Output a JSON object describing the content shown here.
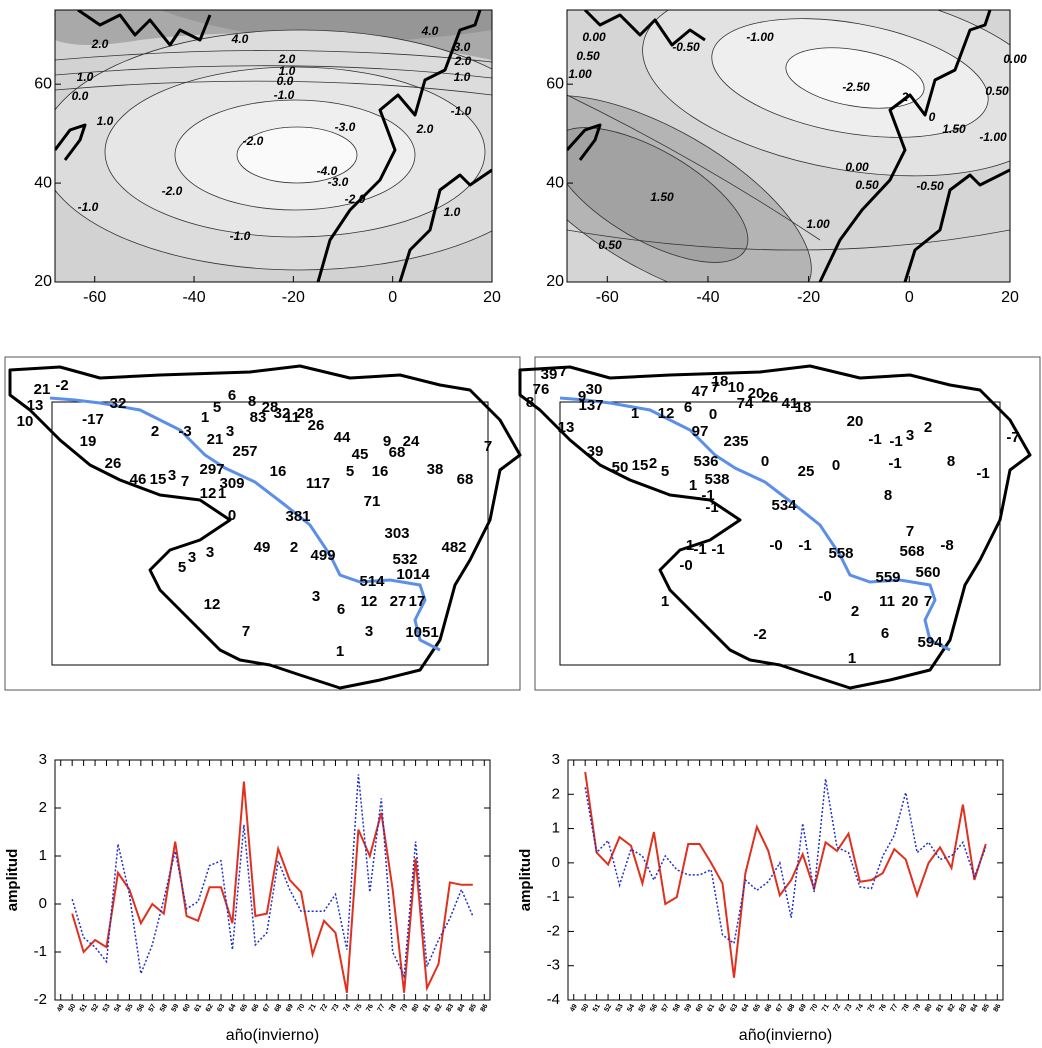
{
  "chart_data": [
    {
      "type": "contour",
      "xlim": [
        -68,
        20
      ],
      "xticks": [
        -60,
        -40,
        -20,
        0,
        20
      ],
      "ylim": [
        20,
        75
      ],
      "yticks": [
        20,
        40,
        60
      ],
      "contour_labels": [
        "2.0",
        "4.0",
        "4.0",
        "3.0",
        "2.0",
        "1.0",
        "-1.0",
        "2.0",
        "1.0",
        "0.0",
        "-1.0",
        "1.0",
        "0.0",
        "1.0",
        "-2.0",
        "-3.0",
        "2.0",
        "-4.0",
        "-3.0",
        "-2.0",
        "-2.0",
        "-1.0",
        "-1.0",
        "1.0"
      ]
    },
    {
      "type": "contour",
      "xlim": [
        -68,
        20
      ],
      "xticks": [
        -60,
        -40,
        -20,
        0,
        20
      ],
      "ylim": [
        20,
        75
      ],
      "yticks": [
        20,
        40,
        60
      ],
      "contour_labels": [
        "0.00",
        "0.50",
        "1.00",
        "-0.50",
        "-1.00",
        "-2.50",
        "2",
        "0",
        "1.50",
        "-1.00",
        "0.00",
        "0.50",
        "0.00",
        "0.50",
        "-0.50",
        "1.50",
        "1.00",
        "0.50"
      ]
    },
    {
      "type": "map",
      "labels": [
        "21",
        "-2",
        "13",
        "10",
        "-17",
        "32",
        "2",
        "-3",
        "1",
        "5",
        "6",
        "8",
        "28",
        "32",
        "28",
        "26",
        "83",
        "11",
        "3",
        "21",
        "257",
        "19",
        "26",
        "46",
        "15",
        "3",
        "7",
        "297",
        "309",
        "12",
        "1",
        "0",
        "16",
        "117",
        "44",
        "45",
        "5",
        "16",
        "9",
        "24",
        "68",
        "38",
        "68",
        "71",
        "7",
        "381",
        "303",
        "482",
        "49",
        "2",
        "499",
        "532",
        "1014",
        "514",
        "3",
        "3",
        "5",
        "12",
        "27",
        "17",
        "3",
        "6",
        "12",
        "3",
        "1051",
        "7",
        "1"
      ]
    },
    {
      "type": "map",
      "labels": [
        "39",
        "7",
        "76",
        "8",
        "9",
        "30",
        "137",
        "1",
        "13",
        "12",
        "6",
        "47",
        "7",
        "18",
        "10",
        "20",
        "26",
        "41",
        "18",
        "74",
        "97",
        "0",
        "235",
        "39",
        "50",
        "15",
        "2",
        "5",
        "536",
        "538",
        "1",
        "-1",
        "-1",
        "0",
        "25",
        "0",
        "20",
        "-1",
        "-1",
        "3",
        "2",
        "8",
        "-1",
        "-7",
        "-1",
        "8",
        "534",
        "7",
        "-8",
        "568",
        "558",
        "-0",
        "-1",
        "-1",
        "1",
        "-1",
        "-0",
        "560",
        "559",
        "11",
        "20",
        "7",
        "-0",
        "2",
        "1",
        "6",
        "594",
        "-2",
        "1"
      ]
    },
    {
      "type": "line",
      "xlabel": "año(invierno)",
      "ylabel": "amplitud",
      "ylim": [
        -2,
        3
      ],
      "yticks": [
        -2,
        -1,
        0,
        1,
        2,
        3
      ],
      "categories": [
        "49",
        "50",
        "51",
        "52",
        "53",
        "54",
        "55",
        "56",
        "57",
        "58",
        "59",
        "60",
        "61",
        "62",
        "63",
        "64",
        "65",
        "66",
        "67",
        "68",
        "69",
        "70",
        "71",
        "72",
        "73",
        "74",
        "75",
        "76",
        "77",
        "78",
        "79",
        "80",
        "81",
        "82",
        "83",
        "84",
        "85",
        "86"
      ],
      "series": [
        {
          "color": "#e0301e",
          "style": "solid",
          "values": [
            null,
            -0.2,
            -1.0,
            -0.75,
            -0.9,
            0.65,
            0.3,
            -0.4,
            0.0,
            -0.2,
            1.3,
            -0.25,
            -0.35,
            0.35,
            0.35,
            -0.4,
            2.55,
            -0.25,
            -0.2,
            1.15,
            0.5,
            0.25,
            -1.05,
            -0.35,
            -0.6,
            -1.85,
            1.55,
            1.0,
            1.9,
            0.3,
            -1.85,
            0.95,
            -1.75,
            -1.25,
            0.45,
            0.4,
            0.4,
            null
          ]
        },
        {
          "color": "#2030c8",
          "style": "dotted",
          "values": [
            null,
            0.1,
            -0.7,
            -0.9,
            -1.2,
            1.25,
            0.2,
            -1.45,
            -0.85,
            0.1,
            1.1,
            -0.1,
            0.05,
            0.8,
            0.9,
            -0.95,
            1.65,
            -0.85,
            -0.6,
            0.9,
            0.3,
            -0.15,
            -0.15,
            -0.15,
            0.2,
            -0.95,
            2.7,
            0.25,
            2.2,
            -1.0,
            -1.5,
            1.3,
            -1.3,
            -0.75,
            -0.3,
            0.3,
            -0.25,
            null
          ]
        }
      ]
    },
    {
      "type": "line",
      "xlabel": "año(invierno)",
      "ylabel": "amplitud",
      "ylim": [
        -4,
        3
      ],
      "yticks": [
        -4,
        -3,
        -2,
        -1,
        0,
        1,
        2,
        3
      ],
      "categories": [
        "49",
        "50",
        "51",
        "52",
        "53",
        "54",
        "55",
        "56",
        "57",
        "58",
        "59",
        "60",
        "61",
        "62",
        "63",
        "64",
        "65",
        "66",
        "67",
        "68",
        "69",
        "70",
        "71",
        "72",
        "73",
        "74",
        "75",
        "76",
        "77",
        "78",
        "79",
        "80",
        "81",
        "82",
        "83",
        "84",
        "85",
        "86"
      ],
      "series": [
        {
          "color": "#e0301e",
          "style": "solid",
          "values": [
            null,
            2.65,
            0.3,
            -0.05,
            0.75,
            0.5,
            -0.6,
            0.9,
            -1.2,
            -1.0,
            0.55,
            0.55,
            0.0,
            -0.6,
            -3.35,
            -0.3,
            1.05,
            0.35,
            -0.95,
            -0.5,
            0.25,
            -0.75,
            0.6,
            0.35,
            0.85,
            -0.55,
            -0.5,
            -0.3,
            0.4,
            0.1,
            -0.95,
            0.0,
            0.45,
            -0.15,
            1.7,
            -0.5,
            0.55,
            null
          ]
        },
        {
          "color": "#2030c8",
          "style": "dotted",
          "values": [
            null,
            2.2,
            0.3,
            0.65,
            -0.65,
            0.4,
            0.2,
            -0.5,
            0.2,
            -0.2,
            -0.35,
            -0.35,
            -0.2,
            -2.1,
            -2.35,
            -0.5,
            -0.8,
            -0.55,
            0.0,
            -1.6,
            1.15,
            -0.85,
            2.45,
            0.45,
            0.3,
            -0.7,
            -0.75,
            0.2,
            0.8,
            2.05,
            0.3,
            0.6,
            0.1,
            0.2,
            0.6,
            -0.4,
            0.45,
            null
          ]
        }
      ]
    }
  ]
}
